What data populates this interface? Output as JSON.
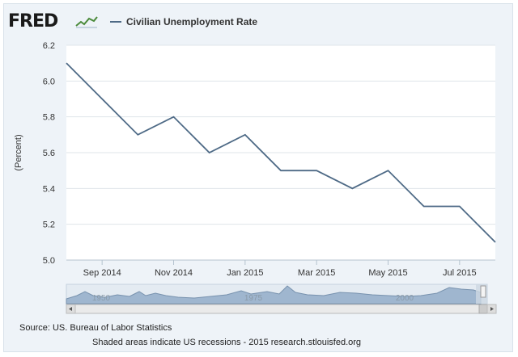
{
  "header": {
    "logo_text": "FRED",
    "legend_label": "Civilian Unemployment Rate"
  },
  "chart_data": {
    "type": "line",
    "title": "",
    "xlabel": "",
    "ylabel": "(Percent)",
    "ylim": [
      5.0,
      6.2
    ],
    "y_ticks": [
      "5.0",
      "5.2",
      "5.4",
      "5.6",
      "5.8",
      "6.0",
      "6.2"
    ],
    "x_tick_labels": [
      "Sep 2014",
      "Nov 2014",
      "Jan 2015",
      "Mar 2015",
      "May 2015",
      "Jul 2015"
    ],
    "grid": true,
    "legend_position": "top-left",
    "line_color": "#4e6a86",
    "series": [
      {
        "name": "Civilian Unemployment Rate",
        "x": [
          "2014-08",
          "2014-09",
          "2014-10",
          "2014-11",
          "2014-12",
          "2015-01",
          "2015-02",
          "2015-03",
          "2015-04",
          "2015-05",
          "2015-06",
          "2015-07",
          "2015-08"
        ],
        "values": [
          6.1,
          5.9,
          5.7,
          5.8,
          5.6,
          5.7,
          5.5,
          5.5,
          5.4,
          5.5,
          5.3,
          5.3,
          5.1
        ]
      }
    ],
    "navigator_labels": [
      "1950",
      "1975",
      "2000"
    ]
  },
  "footer": {
    "source": "Source: US. Bureau of Labor Statistics",
    "note": "Shaded areas indicate US recessions - 2015 research.stlouisfed.org"
  }
}
